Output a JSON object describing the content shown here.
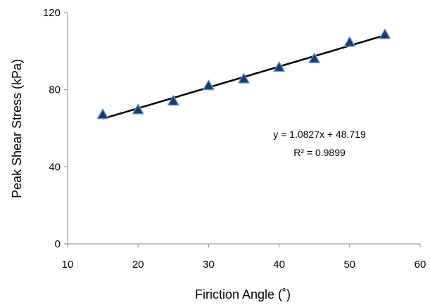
{
  "chart_data": {
    "type": "scatter",
    "title": "",
    "xlabel": "Firiction Angle (˚)",
    "ylabel": "Peak Shear Stress (kPa)",
    "xlim": [
      10,
      60
    ],
    "ylim": [
      0,
      120
    ],
    "x_ticks": [
      "10",
      "20",
      "30",
      "40",
      "50",
      "60"
    ],
    "y_ticks": [
      "0",
      "40",
      "80",
      "120"
    ],
    "grid": false,
    "legend": "none",
    "series": [
      {
        "marker": "triangle",
        "marker_color": "#1f3864",
        "x": [
          15,
          20,
          25,
          30,
          35,
          40,
          45,
          50,
          55
        ],
        "y": [
          67,
          69.5,
          74,
          82,
          85.5,
          91.5,
          96,
          104.5,
          108.5
        ]
      }
    ],
    "trendline": {
      "type": "linear",
      "slope": 1.0827,
      "intercept": 48.719,
      "x_range": [
        15,
        55
      ],
      "color": "#000000"
    },
    "annotations": [
      "y = 1.0827x + 48.719",
      "R² = 0.9899"
    ]
  }
}
